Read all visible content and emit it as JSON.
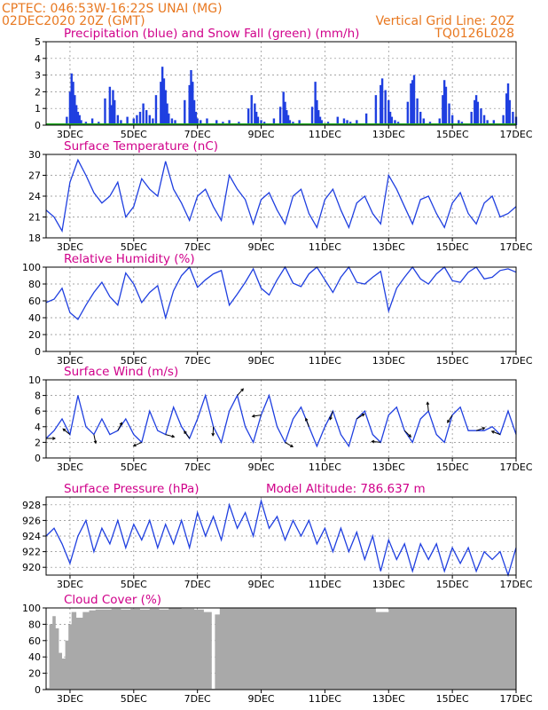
{
  "header": {
    "station_line": "CPTEC:   046:53W-16:22S    UNAI (MG)",
    "date_line": "02DEC2020 20Z (GMT)",
    "vertical_grid": "Vertical Grid Line: 20Z",
    "code": "TQ0126L028"
  },
  "colors": {
    "header": "#e87820",
    "title": "#d0008a",
    "line": "#1f3fe0",
    "precip": "#1f3fe0",
    "snow": "#22aa22",
    "cloud": "#a9a9a9",
    "arrow": "#000000"
  },
  "x_axis": {
    "ticks": [
      {
        "day": 3,
        "label": "3DEC"
      },
      {
        "day": 5,
        "label": "5DEC"
      },
      {
        "day": 7,
        "label": "7DEC"
      },
      {
        "day": 9,
        "label": "9DEC"
      },
      {
        "day": 11,
        "label": "11DEC"
      },
      {
        "day": 13,
        "label": "13DEC"
      },
      {
        "day": 15,
        "label": "15DEC"
      },
      {
        "day": 17,
        "label": "17DEC"
      }
    ],
    "range_days": [
      2.25,
      17.0
    ]
  },
  "chart_data": [
    {
      "type": "bar",
      "title": "Precipitation (blue) and Snow Fall (green) (mm/h)",
      "ylim": [
        0,
        5
      ],
      "yticks": [
        0,
        1,
        2,
        3,
        4,
        5
      ],
      "series": [
        {
          "day": [
            2.9,
            3.0,
            3.05,
            3.1,
            3.15,
            3.2,
            3.25,
            3.3,
            3.35,
            3.5,
            3.7,
            3.9,
            4.1,
            4.25,
            4.3,
            4.35,
            4.4,
            4.5,
            4.6,
            4.8,
            5.0,
            5.1,
            5.2,
            5.3,
            5.4,
            5.5,
            5.6,
            5.7,
            5.85,
            5.9,
            5.95,
            6.0,
            6.05,
            6.1,
            6.2,
            6.3,
            6.6,
            6.75,
            6.8,
            6.85,
            6.9,
            6.95,
            7.0,
            7.1,
            7.3,
            7.6,
            7.8,
            8.0,
            8.3,
            8.6,
            8.7,
            8.8,
            8.85,
            8.9,
            9.0,
            9.1,
            9.4,
            9.6,
            9.7,
            9.75,
            9.8,
            9.85,
            9.9,
            10.0,
            10.2,
            10.6,
            10.7,
            10.75,
            10.8,
            10.85,
            10.9,
            11.1,
            11.4,
            11.6,
            11.7,
            11.8,
            12.0,
            12.3,
            12.6,
            12.75,
            12.8,
            12.9,
            13.0,
            13.05,
            13.1,
            13.2,
            13.3,
            13.6,
            13.7,
            13.75,
            13.8,
            13.9,
            14.0,
            14.1,
            14.3,
            14.6,
            14.7,
            14.75,
            14.8,
            14.9,
            15.0,
            15.2,
            15.3,
            15.6,
            15.7,
            15.75,
            15.8,
            15.9,
            16.0,
            16.1,
            16.3,
            16.6,
            16.7,
            16.75,
            16.8,
            16.9,
            17.0
          ],
          "values": [
            0.5,
            2.0,
            3.1,
            2.6,
            1.8,
            1.2,
            0.8,
            0.6,
            0.3,
            0.2,
            0.4,
            0.2,
            1.6,
            2.3,
            1.2,
            2.1,
            1.5,
            0.6,
            0.3,
            0.5,
            0.4,
            0.6,
            0.8,
            1.3,
            0.9,
            0.6,
            0.4,
            1.8,
            2.6,
            3.5,
            2.8,
            2.1,
            1.3,
            0.7,
            0.4,
            0.3,
            1.5,
            2.4,
            3.3,
            2.6,
            1.5,
            0.8,
            0.4,
            0.3,
            0.4,
            0.3,
            0.2,
            0.3,
            0.2,
            1.0,
            1.8,
            1.3,
            0.8,
            0.5,
            0.3,
            0.2,
            0.4,
            1.1,
            2.0,
            1.4,
            0.9,
            0.6,
            0.3,
            0.2,
            0.3,
            1.1,
            2.6,
            1.5,
            0.9,
            0.5,
            0.3,
            0.2,
            0.5,
            0.4,
            0.3,
            0.2,
            0.3,
            0.7,
            1.8,
            2.4,
            2.8,
            2.1,
            1.5,
            0.8,
            0.5,
            0.3,
            0.2,
            1.4,
            2.5,
            2.7,
            3.0,
            1.6,
            0.8,
            0.4,
            0.2,
            0.4,
            1.8,
            2.7,
            2.3,
            1.3,
            0.6,
            0.3,
            0.2,
            0.8,
            1.5,
            1.8,
            1.4,
            1.0,
            0.6,
            0.3,
            0.3,
            0.6,
            1.9,
            2.5,
            1.5,
            0.8,
            0.5
          ],
          "name": "precip"
        },
        {
          "day": [
            2.25,
            17.0
          ],
          "values": [
            0,
            0
          ],
          "name": "snow"
        }
      ]
    },
    {
      "type": "line",
      "title": "Surface Temperature (nC)",
      "ylim": [
        18,
        30
      ],
      "yticks": [
        18,
        21,
        24,
        27,
        30
      ],
      "x": [
        2.25,
        2.5,
        2.75,
        3.0,
        3.25,
        3.5,
        3.75,
        4.0,
        4.25,
        4.5,
        4.75,
        5.0,
        5.25,
        5.5,
        5.75,
        6.0,
        6.25,
        6.5,
        6.75,
        7.0,
        7.25,
        7.5,
        7.75,
        8.0,
        8.25,
        8.5,
        8.75,
        9.0,
        9.25,
        9.5,
        9.75,
        10.0,
        10.25,
        10.5,
        10.75,
        11.0,
        11.25,
        11.5,
        11.75,
        12.0,
        12.25,
        12.5,
        12.75,
        13.0,
        13.25,
        13.5,
        13.75,
        14.0,
        14.25,
        14.5,
        14.75,
        15.0,
        15.25,
        15.5,
        15.75,
        16.0,
        16.25,
        16.5,
        16.75,
        17.0
      ],
      "values": [
        22,
        21,
        19,
        26,
        29.2,
        27,
        24.5,
        23,
        24,
        26,
        21,
        22.5,
        26.5,
        25,
        24,
        29,
        25,
        23,
        20.5,
        24,
        25,
        22.5,
        20.5,
        27,
        25,
        23.5,
        20,
        23.5,
        24.5,
        22,
        20,
        24,
        25,
        21.5,
        19.5,
        23.5,
        25,
        22,
        19.5,
        23,
        24,
        21.5,
        20,
        27,
        25,
        22.5,
        20,
        23.5,
        24,
        21.5,
        19.5,
        23,
        24.5,
        21.5,
        20,
        23,
        24,
        21,
        21.5,
        22.5
      ]
    },
    {
      "type": "line",
      "title": "Relative Humidity (%)",
      "ylim": [
        0,
        100
      ],
      "yticks": [
        0,
        20,
        40,
        60,
        80,
        100
      ],
      "x": [
        2.25,
        2.5,
        2.75,
        3.0,
        3.25,
        3.5,
        3.75,
        4.0,
        4.25,
        4.5,
        4.75,
        5.0,
        5.25,
        5.5,
        5.75,
        6.0,
        6.25,
        6.5,
        6.75,
        7.0,
        7.25,
        7.5,
        7.75,
        8.0,
        8.25,
        8.5,
        8.75,
        9.0,
        9.25,
        9.5,
        9.75,
        10.0,
        10.25,
        10.5,
        10.75,
        11.0,
        11.25,
        11.5,
        11.75,
        12.0,
        12.25,
        12.5,
        12.75,
        13.0,
        13.25,
        13.5,
        13.75,
        14.0,
        14.25,
        14.5,
        14.75,
        15.0,
        15.25,
        15.5,
        15.75,
        16.0,
        16.25,
        16.5,
        16.75,
        17.0
      ],
      "values": [
        58,
        62,
        75,
        46,
        38,
        55,
        70,
        82,
        65,
        55,
        93,
        80,
        58,
        70,
        78,
        40,
        72,
        90,
        100,
        76,
        85,
        92,
        96,
        55,
        68,
        82,
        98,
        75,
        67,
        85,
        100,
        81,
        77,
        92,
        100,
        85,
        70,
        88,
        100,
        82,
        80,
        88,
        95,
        48,
        75,
        88,
        100,
        86,
        80,
        92,
        100,
        84,
        82,
        94,
        100,
        86,
        88,
        96,
        98,
        94
      ]
    },
    {
      "type": "line",
      "title": "Surface Wind (m/s)",
      "ylim": [
        0,
        10
      ],
      "yticks": [
        0,
        2,
        4,
        6,
        8,
        10
      ],
      "x": [
        2.25,
        2.5,
        2.75,
        3.0,
        3.25,
        3.5,
        3.75,
        4.0,
        4.25,
        4.5,
        4.75,
        5.0,
        5.25,
        5.5,
        5.75,
        6.0,
        6.25,
        6.5,
        6.75,
        7.0,
        7.25,
        7.5,
        7.75,
        8.0,
        8.25,
        8.5,
        8.75,
        9.0,
        9.25,
        9.5,
        9.75,
        10.0,
        10.25,
        10.5,
        10.75,
        11.0,
        11.25,
        11.5,
        11.75,
        12.0,
        12.25,
        12.5,
        12.75,
        13.0,
        13.25,
        13.5,
        13.75,
        14.0,
        14.25,
        14.5,
        14.75,
        15.0,
        15.25,
        15.5,
        15.75,
        16.0,
        16.25,
        16.5,
        16.75,
        17.0
      ],
      "values": [
        2.5,
        3.5,
        5,
        3,
        8,
        4,
        3,
        5,
        3,
        3.5,
        5,
        3,
        2,
        6,
        3.5,
        3,
        6.5,
        4,
        2.5,
        5,
        8,
        4,
        2,
        6,
        8,
        4,
        2,
        5.5,
        8,
        4,
        2,
        5,
        6.5,
        4,
        1.5,
        4,
        6,
        3,
        1.5,
        5,
        6,
        3,
        2,
        5.5,
        6.5,
        3.5,
        2,
        5,
        6,
        3,
        2,
        5.5,
        6.5,
        3.5,
        3.5,
        3.5,
        4,
        3,
        6,
        3
      ]
    },
    {
      "type": "line",
      "title": "Surface Pressure (hPa)",
      "annotation": "Model Altitude: 786.637  m",
      "ylim": [
        919,
        929
      ],
      "yticks": [
        920,
        922,
        924,
        926,
        928
      ],
      "x": [
        2.25,
        2.5,
        2.75,
        3.0,
        3.25,
        3.5,
        3.75,
        4.0,
        4.25,
        4.5,
        4.75,
        5.0,
        5.25,
        5.5,
        5.75,
        6.0,
        6.25,
        6.5,
        6.75,
        7.0,
        7.25,
        7.5,
        7.75,
        8.0,
        8.25,
        8.5,
        8.75,
        9.0,
        9.25,
        9.5,
        9.75,
        10.0,
        10.25,
        10.5,
        10.75,
        11.0,
        11.25,
        11.5,
        11.75,
        12.0,
        12.25,
        12.5,
        12.75,
        13.0,
        13.25,
        13.5,
        13.75,
        14.0,
        14.25,
        14.5,
        14.75,
        15.0,
        15.25,
        15.5,
        15.75,
        16.0,
        16.25,
        16.5,
        16.75,
        17.0
      ],
      "values": [
        924,
        925,
        923,
        920.5,
        924,
        926,
        922,
        925,
        923,
        926,
        922.5,
        925.5,
        923.5,
        926,
        922.5,
        925.5,
        923,
        926,
        922.5,
        927,
        924,
        926.5,
        923.5,
        928,
        925,
        927,
        924,
        928.5,
        925,
        926.5,
        923.5,
        926,
        924,
        926,
        923,
        925,
        922,
        925,
        922,
        924.5,
        921,
        924,
        919.5,
        923.5,
        921,
        923,
        919.5,
        923,
        921,
        923,
        919.5,
        922.5,
        920.5,
        922.5,
        919.5,
        922,
        921,
        922,
        919,
        922.5
      ]
    },
    {
      "type": "area",
      "title": "Cloud Cover (%)",
      "ylim": [
        0,
        100
      ],
      "yticks": [
        0,
        20,
        40,
        60,
        80,
        100
      ],
      "x": [
        2.25,
        2.35,
        2.45,
        2.55,
        2.65,
        2.75,
        2.85,
        2.95,
        3.05,
        3.2,
        3.4,
        3.6,
        3.8,
        4.0,
        4.3,
        4.6,
        4.9,
        5.2,
        5.5,
        5.8,
        6.1,
        6.5,
        6.9,
        7.2,
        7.45,
        7.55,
        7.7,
        8.0,
        8.5,
        9.0,
        10.0,
        11.0,
        12.0,
        12.3,
        12.6,
        13.0,
        14.0,
        15.0,
        16.0,
        17.0
      ],
      "values": [
        2,
        80,
        90,
        75,
        45,
        38,
        60,
        80,
        95,
        88,
        95,
        97,
        98,
        98,
        99,
        98,
        99,
        98,
        99,
        98,
        100,
        99,
        98,
        95,
        1,
        92,
        100,
        100,
        100,
        100,
        100,
        100,
        100,
        100,
        95,
        100,
        100,
        100,
        100,
        100
      ]
    }
  ]
}
